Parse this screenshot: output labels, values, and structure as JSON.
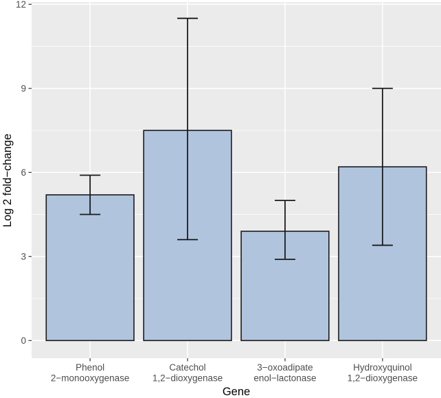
{
  "chart_data": {
    "type": "bar",
    "title": "",
    "xlabel": "Gene",
    "ylabel": "Log 2 fold−change",
    "categories": [
      "Phenol 2−monooxygenase",
      "Catechol 1,2−dioxygenase",
      "3−oxoadipate enol−lactonase",
      "Hydroxyquinol 1,2−dioxygenase"
    ],
    "category_label_lines": [
      [
        "Phenol",
        "2−monooxygenase"
      ],
      [
        "Catechol",
        "1,2−dioxygenase"
      ],
      [
        "3−oxoadipate",
        "enol−lactonase"
      ],
      [
        "Hydroxyquinol",
        "1,2−dioxygenase"
      ]
    ],
    "values": [
      5.2,
      7.5,
      3.9,
      6.2
    ],
    "error_low": [
      4.5,
      3.6,
      2.9,
      3.4
    ],
    "error_high": [
      5.9,
      11.5,
      5.0,
      9.0
    ],
    "ylim": [
      0,
      12
    ],
    "yticks": [
      0,
      3,
      6,
      9,
      12
    ],
    "ytick_labels": [
      "0",
      "3",
      "6",
      "9",
      "12"
    ],
    "y_minor_ticks": [
      1.5,
      4.5,
      7.5,
      10.5
    ],
    "panel_value_range": [
      -0.63,
      12.08
    ],
    "grid": "on",
    "legend": "none",
    "style": {
      "figure_bg": "#ffffff",
      "panel_bg": "#ebebeb",
      "grid_major_color": "#ffffff",
      "grid_minor_color": "#ffffff",
      "bar_fill": "#b0c4de",
      "bar_stroke": "#1a1a1a",
      "errorbar_color": "#1a1a1a",
      "tick_color": "#333333",
      "tick_label_color": "#4d4d4d",
      "axis_title_color": "#000000"
    }
  }
}
